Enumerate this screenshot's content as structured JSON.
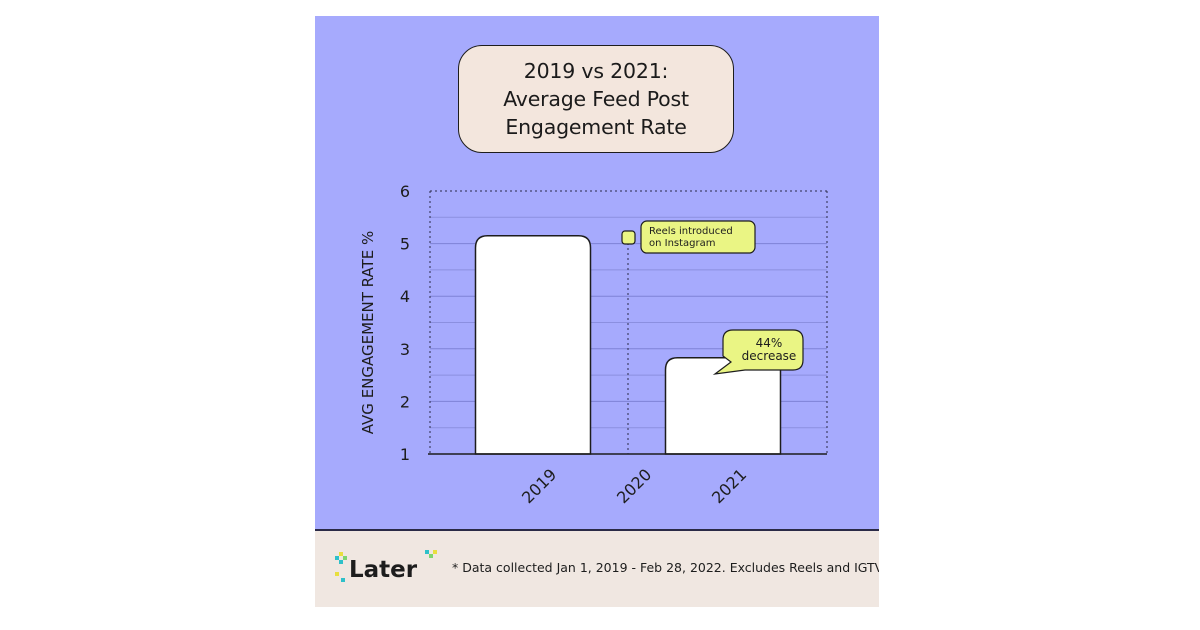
{
  "title": [
    "2019 vs 2021:",
    "Average Feed Post",
    "Engagement Rate"
  ],
  "footer": {
    "note": "* Data collected Jan 1, 2019 - Feb 28, 2022. Excludes Reels and IGTV",
    "logo_text": "Later"
  },
  "colors": {
    "panel_bg": "#a6aafd",
    "footer_bg": "#f0e7e1",
    "bar_fill": "#ffffff",
    "callout_fill": "#eaf584",
    "ink": "#1d1d1d"
  },
  "chart_data": {
    "type": "bar",
    "title": "2019 vs 2021: Average Feed Post Engagement Rate",
    "xlabel": "",
    "ylabel": "AVG ENGAGEMENT RATE %",
    "ylim": [
      1,
      6
    ],
    "yticks": [
      1,
      2,
      3,
      4,
      5,
      6
    ],
    "grid": true,
    "categories": [
      "2019",
      "2020",
      "2021"
    ],
    "values": [
      5.15,
      null,
      2.83
    ],
    "annotations": [
      {
        "text_lines": [
          "Reels introduced",
          "on Instagram"
        ],
        "at_category": "2020",
        "at_value": 5.03
      },
      {
        "text_lines": [
          "44%",
          "decrease"
        ],
        "at_category": "2021",
        "at_value": 2.83
      }
    ]
  }
}
